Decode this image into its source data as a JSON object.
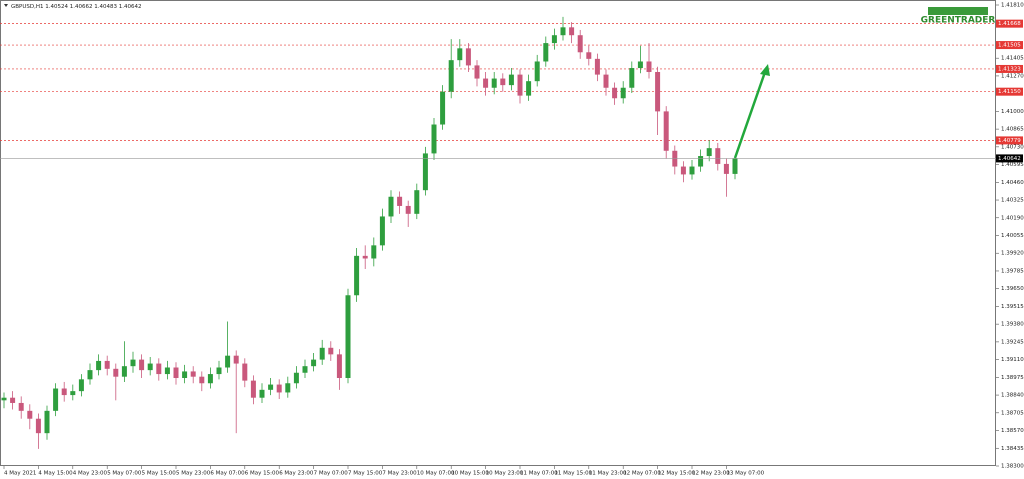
{
  "chart_data": {
    "type": "candlestick",
    "symbol": "GBPUSD,H1",
    "logo": "GREENTRADER",
    "bull_color": "#2e9e3e",
    "bear_color": "#c9587c",
    "level_color": "#e53935",
    "ylim": [
      1.383,
      1.4181
    ],
    "yticks": [
      {
        "value": 1.4181,
        "label": "1.41810"
      },
      {
        "value": 1.41405,
        "label": "1.41405"
      },
      {
        "value": 1.4127,
        "label": "1.41270"
      },
      {
        "value": 1.41,
        "label": "1.41000"
      },
      {
        "value": 1.40865,
        "label": "1.40865"
      },
      {
        "value": 1.4073,
        "label": "1.40730"
      },
      {
        "value": 1.40595,
        "label": "1.40595"
      },
      {
        "value": 1.4046,
        "label": "1.40460"
      },
      {
        "value": 1.40325,
        "label": "1.40325"
      },
      {
        "value": 1.4019,
        "label": "1.40190"
      },
      {
        "value": 1.40055,
        "label": "1.40055"
      },
      {
        "value": 1.3992,
        "label": "1.39920"
      },
      {
        "value": 1.39785,
        "label": "1.39785"
      },
      {
        "value": 1.3965,
        "label": "1.39650"
      },
      {
        "value": 1.39515,
        "label": "1.39515"
      },
      {
        "value": 1.3938,
        "label": "1.39380"
      },
      {
        "value": 1.39245,
        "label": "1.39245"
      },
      {
        "value": 1.3911,
        "label": "1.39110"
      },
      {
        "value": 1.38975,
        "label": "1.38975"
      },
      {
        "value": 1.3884,
        "label": "1.38840"
      },
      {
        "value": 1.38705,
        "label": "1.38705"
      },
      {
        "value": 1.3857,
        "label": "1.38570"
      },
      {
        "value": 1.38435,
        "label": "1.38435"
      },
      {
        "value": 1.383,
        "label": "1.38300"
      }
    ],
    "levels": [
      {
        "value": 1.41668,
        "label": "1.41668"
      },
      {
        "value": 1.41505,
        "label": "1.41505"
      },
      {
        "value": 1.41323,
        "label": "1.41323"
      },
      {
        "value": 1.4115,
        "label": "1.41150"
      },
      {
        "value": 1.40779,
        "label": "1.40779"
      }
    ],
    "xticks": [
      {
        "value": 0,
        "label": "4 May 2021"
      },
      {
        "value": 4,
        "label": "4 May 15:00"
      },
      {
        "value": 8,
        "label": "4 May 23:00"
      },
      {
        "value": 12,
        "label": "5 May 07:00"
      },
      {
        "value": 16,
        "label": "5 May 15:00"
      },
      {
        "value": 20,
        "label": "5 May 23:00"
      },
      {
        "value": 24,
        "label": "6 May 07:00"
      },
      {
        "value": 28,
        "label": "6 May 15:00"
      },
      {
        "value": 32,
        "label": "6 May 23:00"
      },
      {
        "value": 36,
        "label": "7 May 07:00"
      },
      {
        "value": 40,
        "label": "7 May 15:00"
      },
      {
        "value": 44,
        "label": "7 May 23:00"
      },
      {
        "value": 48,
        "label": "10 May 07:00"
      },
      {
        "value": 52,
        "label": "10 May 15:00"
      },
      {
        "value": 56,
        "label": "10 May 23:00"
      },
      {
        "value": 60,
        "label": "11 May 07:00"
      },
      {
        "value": 64,
        "label": "11 May 15:00"
      },
      {
        "value": 68,
        "label": "11 May 23:00"
      },
      {
        "value": 72,
        "label": "12 May 07:00"
      },
      {
        "value": 76,
        "label": "12 May 15:00"
      },
      {
        "value": 80,
        "label": "12 May 23:00"
      },
      {
        "value": 84,
        "label": "13 May 07:00"
      }
    ],
    "open": [
      1.388,
      1.3882,
      1.3878,
      1.3872,
      1.3866,
      1.3855,
      1.3872,
      1.3889,
      1.3884,
      1.3887,
      1.3896,
      1.3903,
      1.391,
      1.3904,
      1.3898,
      1.3906,
      1.3911,
      1.3903,
      1.3908,
      1.39,
      1.3905,
      1.3897,
      1.3902,
      1.3898,
      1.3893,
      1.39,
      1.3905,
      1.3914,
      1.3908,
      1.3895,
      1.3882,
      1.3888,
      1.3892,
      1.3886,
      1.3893,
      1.3901,
      1.3906,
      1.3911,
      1.392,
      1.3915,
      1.3897,
      1.396,
      1.399,
      1.3988,
      1.3998,
      1.402,
      1.4035,
      1.4028,
      1.4022,
      1.404,
      1.4068,
      1.409,
      1.4115,
      1.4139,
      1.4148,
      1.4135,
      1.4125,
      1.4118,
      1.4125,
      1.412,
      1.4128,
      1.4112,
      1.4123,
      1.4138,
      1.4152,
      1.4158,
      1.4164,
      1.4158,
      1.4145,
      1.414,
      1.4128,
      1.4118,
      1.411,
      1.4118,
      1.4133,
      1.4138,
      1.413,
      1.41,
      1.407,
      1.4058,
      1.4052,
      1.4058,
      1.4066,
      1.4072,
      1.406,
      1.40524
    ],
    "high": [
      1.3886,
      1.3887,
      1.3883,
      1.3877,
      1.387,
      1.3876,
      1.3893,
      1.3894,
      1.3892,
      1.39,
      1.3908,
      1.3915,
      1.3914,
      1.3908,
      1.3925,
      1.3917,
      1.3915,
      1.3913,
      1.3912,
      1.391,
      1.3909,
      1.3907,
      1.3906,
      1.3902,
      1.3905,
      1.391,
      1.394,
      1.3918,
      1.3912,
      1.3899,
      1.3893,
      1.3897,
      1.3896,
      1.3898,
      1.3906,
      1.3911,
      1.3916,
      1.3926,
      1.3925,
      1.3919,
      1.3965,
      1.3996,
      1.3998,
      1.4004,
      1.4026,
      1.404,
      1.4039,
      1.4032,
      1.4045,
      1.4073,
      1.4095,
      1.412,
      1.4155,
      1.4155,
      1.4152,
      1.4139,
      1.413,
      1.413,
      1.4129,
      1.4133,
      1.4132,
      1.4128,
      1.4143,
      1.4157,
      1.4163,
      1.4172,
      1.4168,
      1.4162,
      1.415,
      1.4144,
      1.4132,
      1.4122,
      1.4123,
      1.4138,
      1.415,
      1.4152,
      1.4134,
      1.4104,
      1.4074,
      1.4062,
      1.4063,
      1.4071,
      1.4078,
      1.4076,
      1.4064,
      1.40662
    ],
    "low": [
      1.3874,
      1.3873,
      1.3866,
      1.3858,
      1.3843,
      1.385,
      1.3868,
      1.3879,
      1.388,
      1.3883,
      1.3892,
      1.3899,
      1.3899,
      1.388,
      1.3894,
      1.3901,
      1.3897,
      1.3899,
      1.3895,
      1.3896,
      1.3892,
      1.3893,
      1.3893,
      1.3887,
      1.3889,
      1.3896,
      1.3901,
      1.3855,
      1.389,
      1.3877,
      1.3878,
      1.3884,
      1.3881,
      1.3882,
      1.3889,
      1.3897,
      1.3902,
      1.3907,
      1.391,
      1.3888,
      1.3893,
      1.3955,
      1.398,
      1.3982,
      1.3994,
      1.4015,
      1.4022,
      1.4012,
      1.4018,
      1.4036,
      1.4063,
      1.4086,
      1.411,
      1.4134,
      1.413,
      1.4119,
      1.4112,
      1.4113,
      1.4115,
      1.4116,
      1.4106,
      1.4108,
      1.4119,
      1.4134,
      1.4147,
      1.4154,
      1.4152,
      1.414,
      1.4135,
      1.4123,
      1.4112,
      1.4105,
      1.4106,
      1.4114,
      1.4129,
      1.4125,
      1.4082,
      1.4064,
      1.4052,
      1.4046,
      1.4048,
      1.4054,
      1.4062,
      1.4055,
      1.4035,
      1.40483
    ],
    "close": [
      1.3882,
      1.3878,
      1.3872,
      1.3866,
      1.3855,
      1.3872,
      1.3889,
      1.3884,
      1.3887,
      1.3896,
      1.3903,
      1.391,
      1.3904,
      1.3898,
      1.3906,
      1.3911,
      1.3903,
      1.3908,
      1.39,
      1.3905,
      1.3897,
      1.3902,
      1.3898,
      1.3893,
      1.39,
      1.3905,
      1.3914,
      1.3908,
      1.3895,
      1.3882,
      1.3888,
      1.3892,
      1.3886,
      1.3893,
      1.3901,
      1.3906,
      1.3911,
      1.392,
      1.3915,
      1.3897,
      1.396,
      1.399,
      1.3988,
      1.3998,
      1.402,
      1.4035,
      1.4028,
      1.4022,
      1.404,
      1.4068,
      1.409,
      1.4115,
      1.4139,
      1.4148,
      1.4135,
      1.4125,
      1.4118,
      1.4125,
      1.412,
      1.4128,
      1.4112,
      1.4123,
      1.4138,
      1.4152,
      1.4158,
      1.4164,
      1.4158,
      1.4145,
      1.414,
      1.4128,
      1.4118,
      1.411,
      1.4118,
      1.4133,
      1.4138,
      1.413,
      1.41,
      1.407,
      1.4058,
      1.4052,
      1.4058,
      1.4066,
      1.4072,
      1.406,
      1.40524,
      1.40642
    ]
  }
}
